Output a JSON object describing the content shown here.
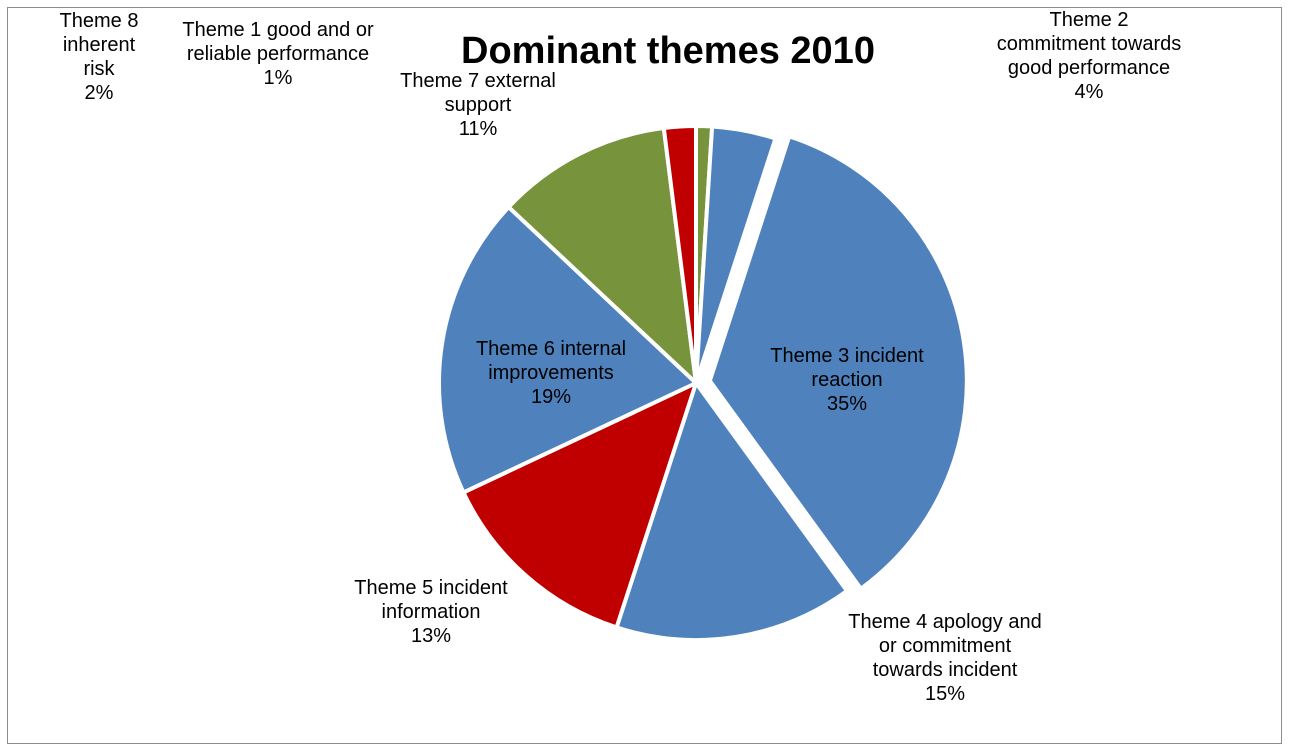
{
  "chart_data": {
    "type": "pie",
    "title": "Dominant themes 2010",
    "series_colors": [
      "#4f81bd",
      "#c00000",
      "#77933c"
    ],
    "slices": [
      {
        "label": [
          "Theme 1 good and or",
          "reliable performance",
          "1%"
        ],
        "value": 1,
        "color": "#77933c",
        "exploded": false
      },
      {
        "label": [
          "Theme 2",
          "commitment towards",
          "good performance",
          "4%"
        ],
        "value": 4,
        "color": "#4f81bd",
        "exploded": false
      },
      {
        "label": [
          "Theme 3 incident",
          "reaction",
          "35%"
        ],
        "value": 35,
        "color": "#4f81bd",
        "exploded": true
      },
      {
        "label": [
          "Theme 4 apology and",
          "or commitment",
          "towards incident",
          "15%"
        ],
        "value": 15,
        "color": "#4f81bd",
        "exploded": false
      },
      {
        "label": [
          "Theme 5 incident",
          "information",
          "13%"
        ],
        "value": 13,
        "color": "#c00000",
        "exploded": false
      },
      {
        "label": [
          "Theme 6 internal",
          "improvements",
          "19%"
        ],
        "value": 19,
        "color": "#4f81bd",
        "exploded": false
      },
      {
        "label": [
          "Theme 7 external",
          "support",
          "11%"
        ],
        "value": 11,
        "color": "#77933c",
        "exploded": false
      },
      {
        "label": [
          "Theme 8",
          "inherent",
          "risk",
          "2%"
        ],
        "value": 2,
        "color": "#c00000",
        "exploded": false
      }
    ],
    "legend": "none"
  }
}
